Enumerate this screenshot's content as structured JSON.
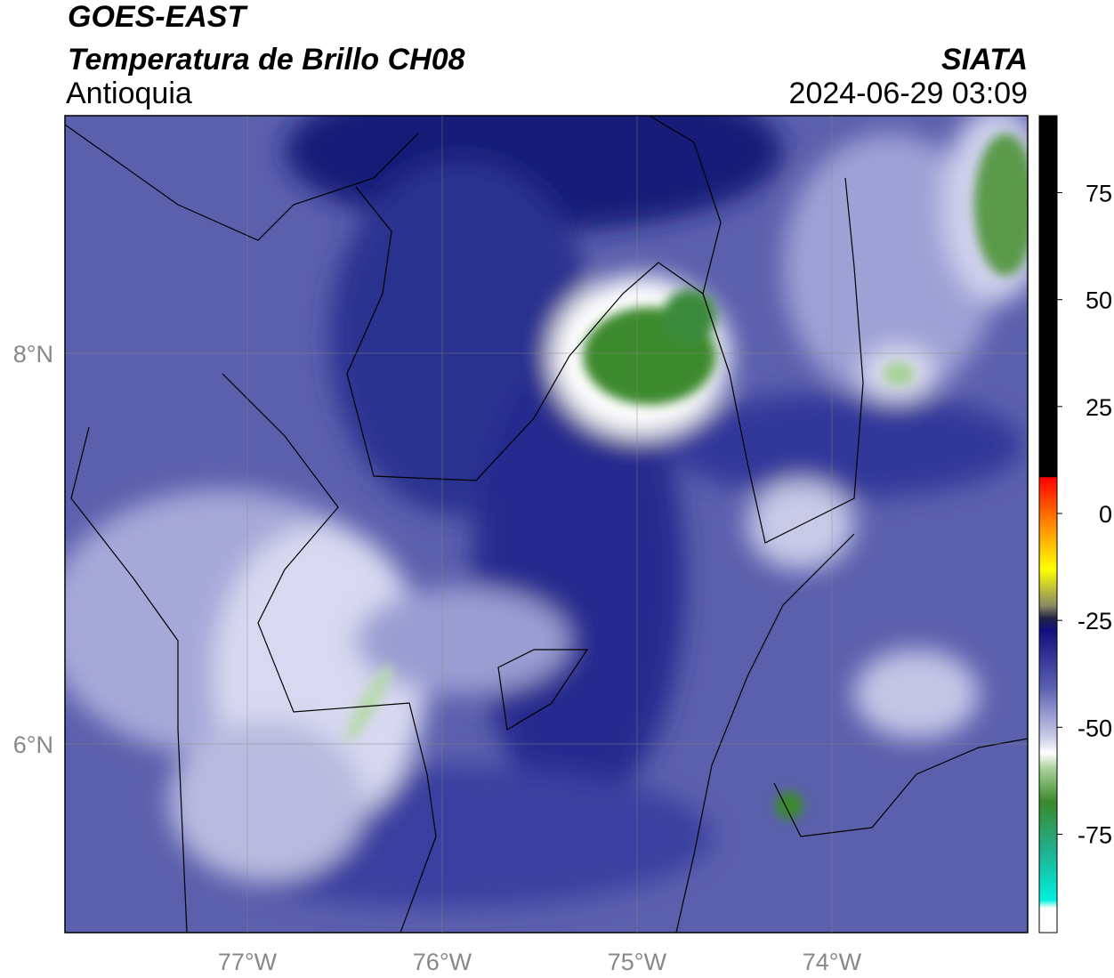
{
  "header": {
    "title": "GOES-EAST",
    "subtitle": "Temperatura de Brillo CH08",
    "source": "SIATA",
    "region": "Antioquia",
    "datetime": "2024-06-29 03:09"
  },
  "map": {
    "xlim": [
      -77.936,
      -72.995
    ],
    "ylim": [
      5.034,
      9.216
    ],
    "xticks": [
      {
        "value": -77,
        "label": "77°W"
      },
      {
        "value": -76,
        "label": "76°W"
      },
      {
        "value": -75,
        "label": "75°W"
      },
      {
        "value": -74,
        "label": "74°W"
      }
    ],
    "yticks": [
      {
        "value": 6,
        "label": "6°N"
      },
      {
        "value": 8,
        "label": "8°N"
      }
    ],
    "grid": true
  },
  "colorbar": {
    "lim": [
      -98,
      93
    ],
    "ticks": [
      75,
      50,
      25,
      0,
      -25,
      -50,
      -75
    ]
  }
}
